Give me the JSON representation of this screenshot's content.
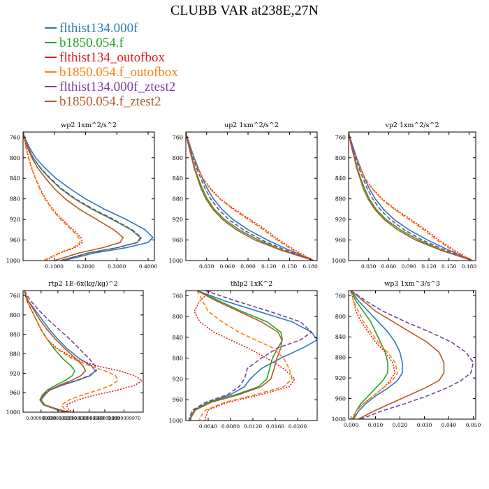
{
  "title": "CLUBB VAR at238E,27N",
  "legend": [
    {
      "label": "flthist134.000f",
      "color": "#2c7bb6",
      "dash": "solid"
    },
    {
      "label": "b1850.054.f",
      "color": "#2ca02c",
      "dash": "solid"
    },
    {
      "label": "flthist134_outofbox",
      "color": "#e41a1c",
      "dash": "dotted"
    },
    {
      "label": "b1850.054.f_outofbox",
      "color": "#ff7f0e",
      "dash": "dashed"
    },
    {
      "label": "flthist134.000f_ztest2",
      "color": "#7b3f9e",
      "dash": "dashed"
    },
    {
      "label": "b1850.054.f_ztest2",
      "color": "#b35a2a",
      "dash": "solid"
    }
  ],
  "chart_data": [
    {
      "type": "line",
      "title": "wp2   1xm^2/s^2",
      "yticks": [
        760,
        800,
        840,
        880,
        920,
        960,
        1000
      ],
      "ylim": [
        750,
        1000
      ],
      "xlim": [
        0,
        0.42
      ],
      "xticks": [
        0.1,
        0.2,
        0.3,
        0.4
      ],
      "xtick_labels": [
        "0.1000",
        "0.2000",
        "0.3000",
        "0.4000"
      ],
      "y": [
        750,
        760,
        780,
        800,
        820,
        840,
        860,
        880,
        900,
        920,
        940,
        955,
        965,
        975,
        985,
        1000
      ],
      "series": [
        {
          "values": [
            0.0,
            0.005,
            0.02,
            0.04,
            0.07,
            0.105,
            0.15,
            0.2,
            0.26,
            0.33,
            0.39,
            0.415,
            0.4,
            0.33,
            0.23,
            0.13
          ]
        },
        {
          "values": [
            0.0,
            0.004,
            0.016,
            0.032,
            0.055,
            0.085,
            0.12,
            0.165,
            0.22,
            0.285,
            0.345,
            0.375,
            0.365,
            0.3,
            0.21,
            0.12
          ]
        },
        {
          "values": [
            0.0,
            0.003,
            0.01,
            0.018,
            0.028,
            0.04,
            0.055,
            0.072,
            0.095,
            0.125,
            0.16,
            0.185,
            0.19,
            0.165,
            0.12,
            0.07
          ]
        },
        {
          "values": [
            0.0,
            0.003,
            0.009,
            0.017,
            0.027,
            0.039,
            0.053,
            0.07,
            0.092,
            0.12,
            0.155,
            0.178,
            0.183,
            0.16,
            0.115,
            0.065
          ]
        },
        {
          "values": [
            0.0,
            0.004,
            0.016,
            0.032,
            0.056,
            0.087,
            0.123,
            0.168,
            0.225,
            0.29,
            0.348,
            0.378,
            0.367,
            0.3,
            0.21,
            0.12
          ]
        },
        {
          "values": [
            0.0,
            0.004,
            0.014,
            0.028,
            0.047,
            0.072,
            0.1,
            0.135,
            0.18,
            0.235,
            0.29,
            0.32,
            0.31,
            0.255,
            0.18,
            0.1
          ]
        }
      ]
    },
    {
      "type": "line",
      "title": "up2   1xm^2/s^2",
      "yticks": [
        760,
        800,
        840,
        880,
        920,
        960,
        1000
      ],
      "ylim": [
        750,
        1000
      ],
      "xlim": [
        0,
        0.19
      ],
      "xticks": [
        0.03,
        0.06,
        0.09,
        0.12,
        0.15,
        0.18
      ],
      "xtick_labels": [
        "0.030",
        "0.060",
        "0.090",
        "0.120",
        "0.150",
        "0.180"
      ],
      "y": [
        750,
        760,
        780,
        800,
        820,
        840,
        860,
        880,
        900,
        920,
        940,
        960,
        980,
        1000
      ],
      "series": [
        {
          "values": [
            0.0,
            0.002,
            0.007,
            0.012,
            0.018,
            0.024,
            0.031,
            0.04,
            0.052,
            0.068,
            0.09,
            0.118,
            0.15,
            0.185
          ]
        },
        {
          "values": [
            0.0,
            0.0015,
            0.005,
            0.009,
            0.013,
            0.018,
            0.024,
            0.031,
            0.041,
            0.056,
            0.077,
            0.105,
            0.14,
            0.185
          ]
        },
        {
          "values": [
            0.0,
            0.0015,
            0.006,
            0.011,
            0.017,
            0.025,
            0.036,
            0.05,
            0.07,
            0.093,
            0.115,
            0.135,
            0.158,
            0.185
          ]
        },
        {
          "values": [
            0.0,
            0.0015,
            0.006,
            0.011,
            0.017,
            0.025,
            0.035,
            0.049,
            0.068,
            0.09,
            0.112,
            0.132,
            0.155,
            0.185
          ]
        },
        {
          "values": [
            0.0,
            0.0015,
            0.0055,
            0.0105,
            0.0155,
            0.0215,
            0.028,
            0.036,
            0.047,
            0.062,
            0.083,
            0.11,
            0.145,
            0.185
          ]
        },
        {
          "values": [
            0.0,
            0.0012,
            0.0045,
            0.0085,
            0.012,
            0.017,
            0.022,
            0.029,
            0.039,
            0.053,
            0.073,
            0.1,
            0.138,
            0.185
          ]
        }
      ]
    },
    {
      "type": "line",
      "title": "vp2   1xm^2/s^2",
      "yticks": [
        760,
        800,
        840,
        880,
        920,
        960,
        1000
      ],
      "ylim": [
        750,
        1000
      ],
      "xlim": [
        0,
        0.19
      ],
      "xticks": [
        0.03,
        0.06,
        0.09,
        0.12,
        0.15,
        0.18
      ],
      "xtick_labels": [
        "0.030",
        "0.060",
        "0.090",
        "0.120",
        "0.150",
        "0.180"
      ],
      "y": [
        750,
        760,
        780,
        800,
        820,
        840,
        860,
        880,
        900,
        920,
        940,
        960,
        980,
        1000
      ],
      "series": [
        {
          "values": [
            0.0,
            0.002,
            0.007,
            0.012,
            0.018,
            0.024,
            0.031,
            0.04,
            0.052,
            0.068,
            0.09,
            0.118,
            0.15,
            0.185
          ]
        },
        {
          "values": [
            0.0,
            0.0015,
            0.005,
            0.009,
            0.013,
            0.018,
            0.024,
            0.031,
            0.041,
            0.056,
            0.077,
            0.105,
            0.14,
            0.185
          ]
        },
        {
          "values": [
            0.0,
            0.0015,
            0.006,
            0.011,
            0.017,
            0.025,
            0.036,
            0.05,
            0.07,
            0.093,
            0.115,
            0.135,
            0.158,
            0.185
          ]
        },
        {
          "values": [
            0.0,
            0.0015,
            0.006,
            0.011,
            0.017,
            0.025,
            0.035,
            0.049,
            0.068,
            0.09,
            0.112,
            0.132,
            0.155,
            0.185
          ]
        },
        {
          "values": [
            0.0,
            0.0015,
            0.0055,
            0.0105,
            0.0155,
            0.0215,
            0.028,
            0.036,
            0.047,
            0.062,
            0.083,
            0.11,
            0.145,
            0.185
          ]
        },
        {
          "values": [
            0.0,
            0.0012,
            0.0045,
            0.0085,
            0.012,
            0.017,
            0.022,
            0.029,
            0.039,
            0.053,
            0.073,
            0.1,
            0.138,
            0.185
          ]
        }
      ]
    },
    {
      "type": "line",
      "title": "rtp2   1E-6x(kg/kg)^2",
      "yticks": [
        760,
        800,
        840,
        880,
        920,
        960,
        1000
      ],
      "ylim": [
        750,
        1000
      ],
      "xlim": [
        0,
        1
      ],
      "xticks": [
        0.15,
        0.29,
        0.42,
        0.55,
        0.68,
        0.84
      ],
      "xtick_labels": [
        "0.009999999",
        "0.020000000",
        "0.029999999",
        "0.039999999",
        "0.049999999",
        "0.0599999970"
      ],
      "y": [
        750,
        770,
        790,
        810,
        830,
        850,
        870,
        890,
        905,
        915,
        925,
        935,
        945,
        955,
        965,
        975,
        985,
        995,
        1000
      ],
      "series": [
        {
          "values": [
            0.01,
            0.04,
            0.1,
            0.16,
            0.22,
            0.29,
            0.37,
            0.47,
            0.57,
            0.6,
            0.56,
            0.45,
            0.32,
            0.22,
            0.18,
            0.15,
            0.18,
            0.3,
            0.38
          ]
        },
        {
          "values": [
            0.01,
            0.03,
            0.07,
            0.11,
            0.15,
            0.2,
            0.26,
            0.33,
            0.4,
            0.43,
            0.41,
            0.35,
            0.27,
            0.2,
            0.16,
            0.14,
            0.17,
            0.28,
            0.35
          ]
        },
        {
          "values": [
            0.01,
            0.03,
            0.07,
            0.11,
            0.15,
            0.2,
            0.29,
            0.43,
            0.62,
            0.8,
            0.93,
            0.99,
            0.93,
            0.78,
            0.6,
            0.45,
            0.36,
            0.38,
            0.42
          ]
        },
        {
          "values": [
            0.01,
            0.03,
            0.07,
            0.11,
            0.15,
            0.2,
            0.28,
            0.41,
            0.56,
            0.68,
            0.77,
            0.79,
            0.73,
            0.62,
            0.49,
            0.38,
            0.32,
            0.35,
            0.4
          ]
        },
        {
          "values": [
            0.01,
            0.06,
            0.13,
            0.21,
            0.3,
            0.39,
            0.47,
            0.55,
            0.6,
            0.61,
            0.55,
            0.44,
            0.31,
            0.21,
            0.17,
            0.15,
            0.18,
            0.3,
            0.38
          ]
        },
        {
          "values": [
            0.01,
            0.04,
            0.09,
            0.14,
            0.2,
            0.27,
            0.35,
            0.44,
            0.5,
            0.52,
            0.48,
            0.4,
            0.3,
            0.22,
            0.17,
            0.15,
            0.18,
            0.29,
            0.37
          ]
        }
      ]
    },
    {
      "type": "line",
      "title": "thlp2   1xK^2",
      "yticks": [
        760,
        800,
        840,
        880,
        920,
        960,
        1000
      ],
      "ylim": [
        750,
        1000
      ],
      "xlim": [
        0,
        0.0235
      ],
      "xticks": [
        0.004,
        0.008,
        0.012,
        0.016,
        0.02
      ],
      "xtick_labels": [
        "0.0040",
        "0.0080",
        "0.0120",
        "0.0160",
        "0.0200"
      ],
      "y": [
        750,
        770,
        790,
        810,
        830,
        845,
        860,
        880,
        900,
        920,
        935,
        950,
        965,
        980,
        995,
        1000
      ],
      "series": [
        {
          "values": [
            0.002,
            0.007,
            0.013,
            0.019,
            0.0225,
            0.0235,
            0.021,
            0.017,
            0.0135,
            0.0115,
            0.0105,
            0.008,
            0.004,
            0.0015,
            0.0008,
            0.0008
          ]
        },
        {
          "values": [
            0.002,
            0.006,
            0.01,
            0.0145,
            0.017,
            0.0173,
            0.0165,
            0.0155,
            0.015,
            0.0145,
            0.013,
            0.009,
            0.004,
            0.0015,
            0.0008,
            0.0008
          ]
        },
        {
          "values": [
            0.0045,
            0.0025,
            0.0015,
            0.0025,
            0.005,
            0.008,
            0.011,
            0.0145,
            0.0175,
            0.0195,
            0.0185,
            0.0135,
            0.0075,
            0.004,
            0.0035,
            0.0035
          ]
        },
        {
          "values": [
            0.002,
            0.003,
            0.004,
            0.0065,
            0.0095,
            0.0125,
            0.0155,
            0.0175,
            0.0185,
            0.019,
            0.0175,
            0.0125,
            0.007,
            0.0035,
            0.0025,
            0.0025
          ]
        },
        {
          "values": [
            0.0035,
            0.009,
            0.015,
            0.0205,
            0.0225,
            0.0205,
            0.0165,
            0.0135,
            0.011,
            0.0105,
            0.0095,
            0.0075,
            0.0035,
            0.0012,
            0.0006,
            0.0006
          ]
        },
        {
          "values": [
            0.002,
            0.0055,
            0.0095,
            0.0135,
            0.0165,
            0.0172,
            0.017,
            0.0163,
            0.0158,
            0.0152,
            0.0135,
            0.0095,
            0.0045,
            0.0017,
            0.0009,
            0.0009
          ]
        }
      ]
    },
    {
      "type": "line",
      "title": "wp3   1xm^3/s^3",
      "yticks": [
        760,
        800,
        840,
        880,
        920,
        960,
        1000
      ],
      "ylim": [
        750,
        1000
      ],
      "xlim": [
        -0.001,
        0.051
      ],
      "xticks": [
        0.0,
        0.01,
        0.02,
        0.03,
        0.04,
        0.05
      ],
      "xtick_labels": [
        "0.000",
        "0.010",
        "0.020",
        "0.030",
        "0.040",
        "0.050"
      ],
      "y": [
        750,
        770,
        790,
        810,
        830,
        850,
        870,
        890,
        910,
        925,
        940,
        955,
        970,
        985,
        1000
      ],
      "series": [
        {
          "values": [
            0.0,
            0.003,
            0.007,
            0.011,
            0.015,
            0.018,
            0.02,
            0.021,
            0.021,
            0.019,
            0.015,
            0.01,
            0.006,
            0.003,
            0.001
          ]
        },
        {
          "values": [
            0.0,
            0.002,
            0.005,
            0.008,
            0.01,
            0.012,
            0.014,
            0.015,
            0.015,
            0.013,
            0.01,
            0.007,
            0.004,
            0.002,
            0.001
          ]
        },
        {
          "values": [
            0.0,
            0.001,
            0.002,
            0.004,
            0.007,
            0.01,
            0.014,
            0.017,
            0.018,
            0.016,
            0.013,
            0.009,
            0.005,
            0.002,
            0.0005
          ]
        },
        {
          "values": [
            0.0,
            0.001,
            0.003,
            0.005,
            0.008,
            0.011,
            0.015,
            0.018,
            0.019,
            0.017,
            0.013,
            0.009,
            0.005,
            0.002,
            0.0005
          ]
        },
        {
          "values": [
            0.0,
            0.006,
            0.013,
            0.022,
            0.032,
            0.041,
            0.047,
            0.05,
            0.049,
            0.045,
            0.039,
            0.031,
            0.022,
            0.012,
            0.004
          ]
        },
        {
          "values": [
            0.0,
            0.005,
            0.01,
            0.017,
            0.024,
            0.031,
            0.036,
            0.038,
            0.038,
            0.036,
            0.03,
            0.023,
            0.016,
            0.009,
            0.003
          ]
        }
      ]
    }
  ]
}
